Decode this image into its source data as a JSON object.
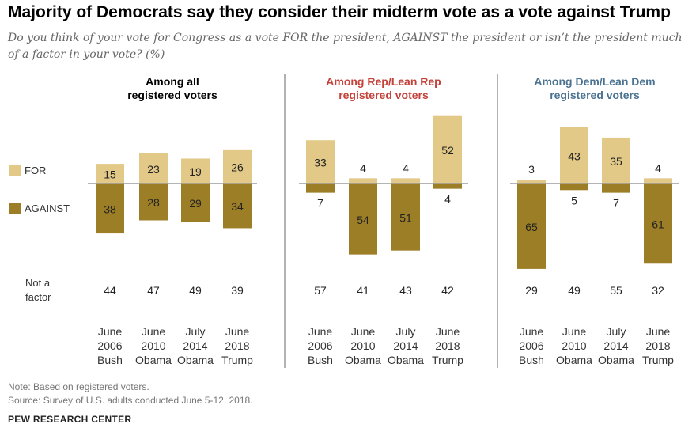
{
  "title": "Majority of Democrats say they consider their midterm vote as a vote against Trump",
  "subtitle": "Do you think of your vote for Congress as a vote FOR the president, AGAINST the president or isn’t the president much of a factor in your vote? (%)",
  "note": "Note: Based on registered voters.",
  "source": "Source: Survey of U.S. adults conducted June 5-12, 2018.",
  "brand": "PEW RESEARCH CENTER",
  "chart_data": {
    "type": "bar",
    "colors": {
      "for": "#E3C987",
      "against": "#9C7E26",
      "rep": "#C4423A",
      "dem": "#4B7391"
    },
    "legend": [
      "FOR",
      "AGAINST"
    ],
    "not_a_factor_label": [
      "Not a",
      "factor"
    ],
    "categories": [
      [
        "June",
        "2006",
        "Bush"
      ],
      [
        "June",
        "2010",
        "Obama"
      ],
      [
        "July",
        "2014",
        "Obama"
      ],
      [
        "June",
        "2018",
        "Trump"
      ]
    ],
    "panels": [
      {
        "title": [
          "Among all",
          "registered voters"
        ],
        "color": "#000000",
        "for": [
          15,
          23,
          19,
          26
        ],
        "against": [
          38,
          28,
          29,
          34
        ],
        "not_a_factor": [
          44,
          47,
          49,
          39
        ]
      },
      {
        "title": [
          "Among Rep/Lean Rep",
          "registered voters"
        ],
        "color": "#C4423A",
        "for": [
          33,
          4,
          4,
          52
        ],
        "against": [
          7,
          54,
          51,
          4
        ],
        "not_a_factor": [
          57,
          41,
          43,
          42
        ]
      },
      {
        "title": [
          "Among Dem/Lean Dem",
          "registered voters"
        ],
        "color": "#4B7391",
        "for": [
          3,
          43,
          35,
          4
        ],
        "against": [
          65,
          5,
          7,
          61
        ],
        "not_a_factor": [
          29,
          49,
          55,
          32
        ]
      }
    ]
  }
}
